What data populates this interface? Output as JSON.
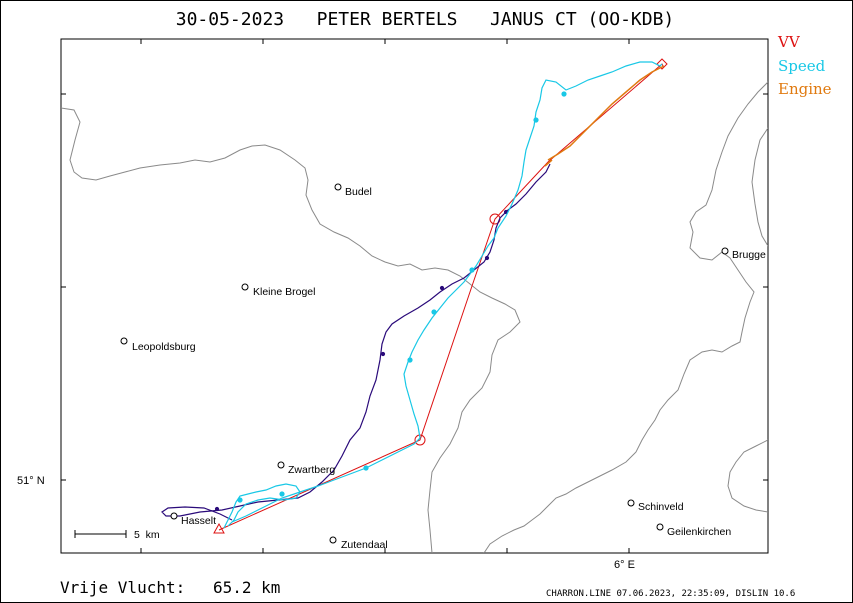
{
  "title": "30-05-2023   PETER BERTELS   JANUS CT (OO-KDB)",
  "legend": [
    {
      "label": "VV",
      "color": "#dd1111"
    },
    {
      "label": "Speed",
      "color": "#19c8e6"
    },
    {
      "label": "Engine",
      "color": "#e07a10"
    }
  ],
  "places": [
    {
      "name": "Budel"
    },
    {
      "name": "Brugge"
    },
    {
      "name": "Kleine Brogel"
    },
    {
      "name": "Leopoldsburg"
    },
    {
      "name": "Zwartberg"
    },
    {
      "name": "Hasselt"
    },
    {
      "name": "Zutendaal"
    },
    {
      "name": "Schinveld"
    },
    {
      "name": "Geilenkirchen"
    }
  ],
  "axes": {
    "lat_label": "51° N",
    "lon_label": "6° E"
  },
  "scale_label": "5  km",
  "distance": {
    "label": "Vrije Vlucht:",
    "value": "65.2 km"
  },
  "footer": "CHARRON.LINE 07.06.2023, 22:35:09, DISLIN 10.6",
  "colors": {
    "track_line": "#2a0a7a",
    "border": "#8a8a8a",
    "task": "#dd1111",
    "speed": "#19c8e6",
    "engine": "#e07a10"
  }
}
